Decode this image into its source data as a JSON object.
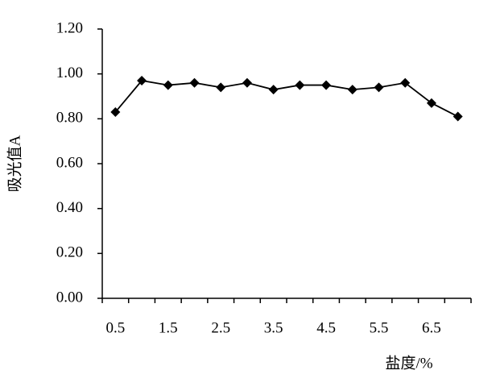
{
  "chart_data": {
    "type": "line",
    "categories": [
      "0.5",
      null,
      "1.5",
      null,
      "2.5",
      null,
      "3.5",
      null,
      "4.5",
      null,
      "5.5",
      null,
      "6.5",
      null
    ],
    "values": [
      0.83,
      0.97,
      0.95,
      0.96,
      0.94,
      0.96,
      0.93,
      0.95,
      0.95,
      0.93,
      0.94,
      0.96,
      0.87,
      0.81
    ],
    "color": "#000000",
    "ylim": [
      0,
      1.2
    ],
    "yticks": [
      {
        "value": 0,
        "label": "0.00"
      },
      {
        "value": 0.2,
        "label": "0.20"
      },
      {
        "value": 0.4,
        "label": "0.40"
      },
      {
        "value": 0.6,
        "label": "0.60"
      },
      {
        "value": 0.8,
        "label": "0.80"
      },
      {
        "value": 1.0,
        "label": "1.00"
      },
      {
        "value": 1.2,
        "label": "1.20"
      }
    ],
    "y_label": "吸光值A",
    "x_label": "盐度/%"
  }
}
